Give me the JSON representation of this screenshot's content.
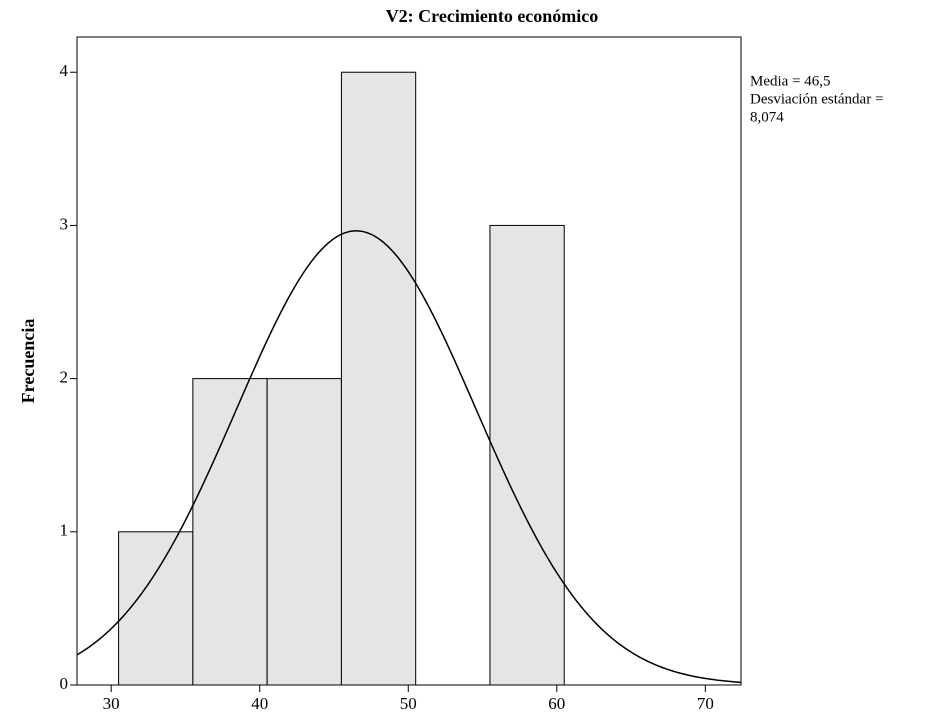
{
  "chart_data": {
    "type": "histogram",
    "title": "V2: Crecimiento económico",
    "y_label": "Frecuencia",
    "bins": [
      30.5,
      35.5,
      40.5,
      45.5,
      50.5,
      55.5,
      60.5
    ],
    "counts": [
      1,
      2,
      2,
      4,
      0,
      3
    ],
    "color": "#e5e5e5",
    "normal": {
      "mean": 46.5,
      "sd": 8.074
    },
    "annotations": [
      "Media = 46,5",
      "Desviación estándar =",
      "8,074"
    ],
    "xlim": [
      27.7,
      72.4
    ],
    "xticks": [
      30,
      40,
      50,
      60,
      70
    ],
    "ylim": [
      0,
      4.23
    ],
    "yticks": [
      0,
      1,
      2,
      3,
      4
    ]
  }
}
